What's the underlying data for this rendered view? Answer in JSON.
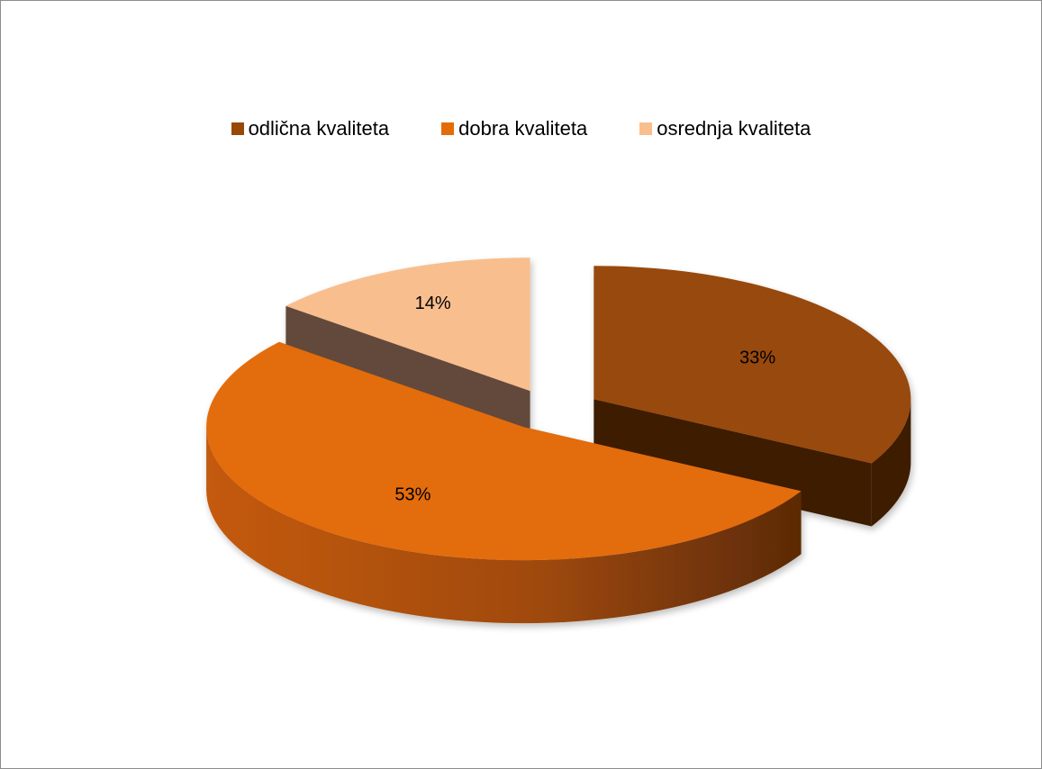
{
  "chart_data": {
    "type": "pie",
    "style": "3d-exploded",
    "categories": [
      "odlična kvaliteta",
      "dobra kvaliteta",
      "osrednja kvaliteta"
    ],
    "values": [
      33,
      53,
      14
    ],
    "data_labels": [
      "33%",
      "53%",
      "14%"
    ],
    "colors": [
      "#984807",
      "#E36C09",
      "#F9BE8E"
    ],
    "side_colors": [
      "#3E1D02",
      "#8A4A12",
      "#624A3A"
    ],
    "legend_position": "top",
    "title": ""
  }
}
